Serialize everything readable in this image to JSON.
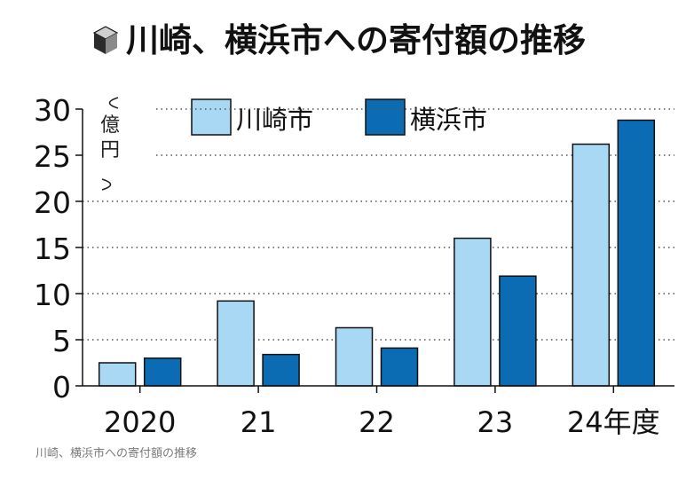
{
  "chart_data": {
    "type": "bar",
    "title": "川崎、横浜市への寄付額の推移",
    "ylabel": "億円",
    "ylim": [
      0,
      30
    ],
    "yticks": [
      0,
      5,
      10,
      15,
      20,
      25,
      30
    ],
    "categories": [
      "2020",
      "21",
      "22",
      "23",
      "24年度"
    ],
    "series": [
      {
        "name": "川崎市",
        "color": "#a9d8f5",
        "values": [
          2.5,
          9.2,
          6.3,
          16.0,
          26.2
        ]
      },
      {
        "name": "横浜市",
        "color": "#0b6cb3",
        "values": [
          3.0,
          3.4,
          4.1,
          11.9,
          28.8
        ]
      }
    ],
    "grid": true,
    "legend": "top"
  },
  "caption": "川崎、横浜市への寄付額の推移",
  "colors": {
    "dark": "#111111",
    "grid": "#555555"
  }
}
